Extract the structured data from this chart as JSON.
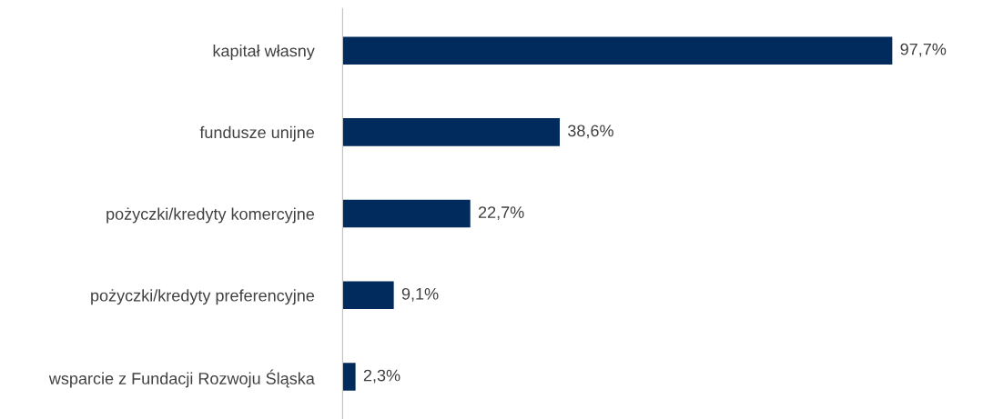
{
  "chart_data": {
    "type": "bar",
    "orientation": "horizontal",
    "categories": [
      "kapitał własny",
      "fundusze unijne",
      "pożyczki/kredyty komercyjne",
      "pożyczki/kredyty preferencyjne",
      "wsparcie z Fundacji Rozwoju Śląska"
    ],
    "values": [
      97.7,
      38.6,
      22.7,
      9.1,
      2.3
    ],
    "value_labels": [
      "97,7%",
      "38,6%",
      "22,7%",
      "9,1%",
      "2,3%"
    ],
    "color": "#002b5c",
    "grid": false,
    "legend": false
  }
}
